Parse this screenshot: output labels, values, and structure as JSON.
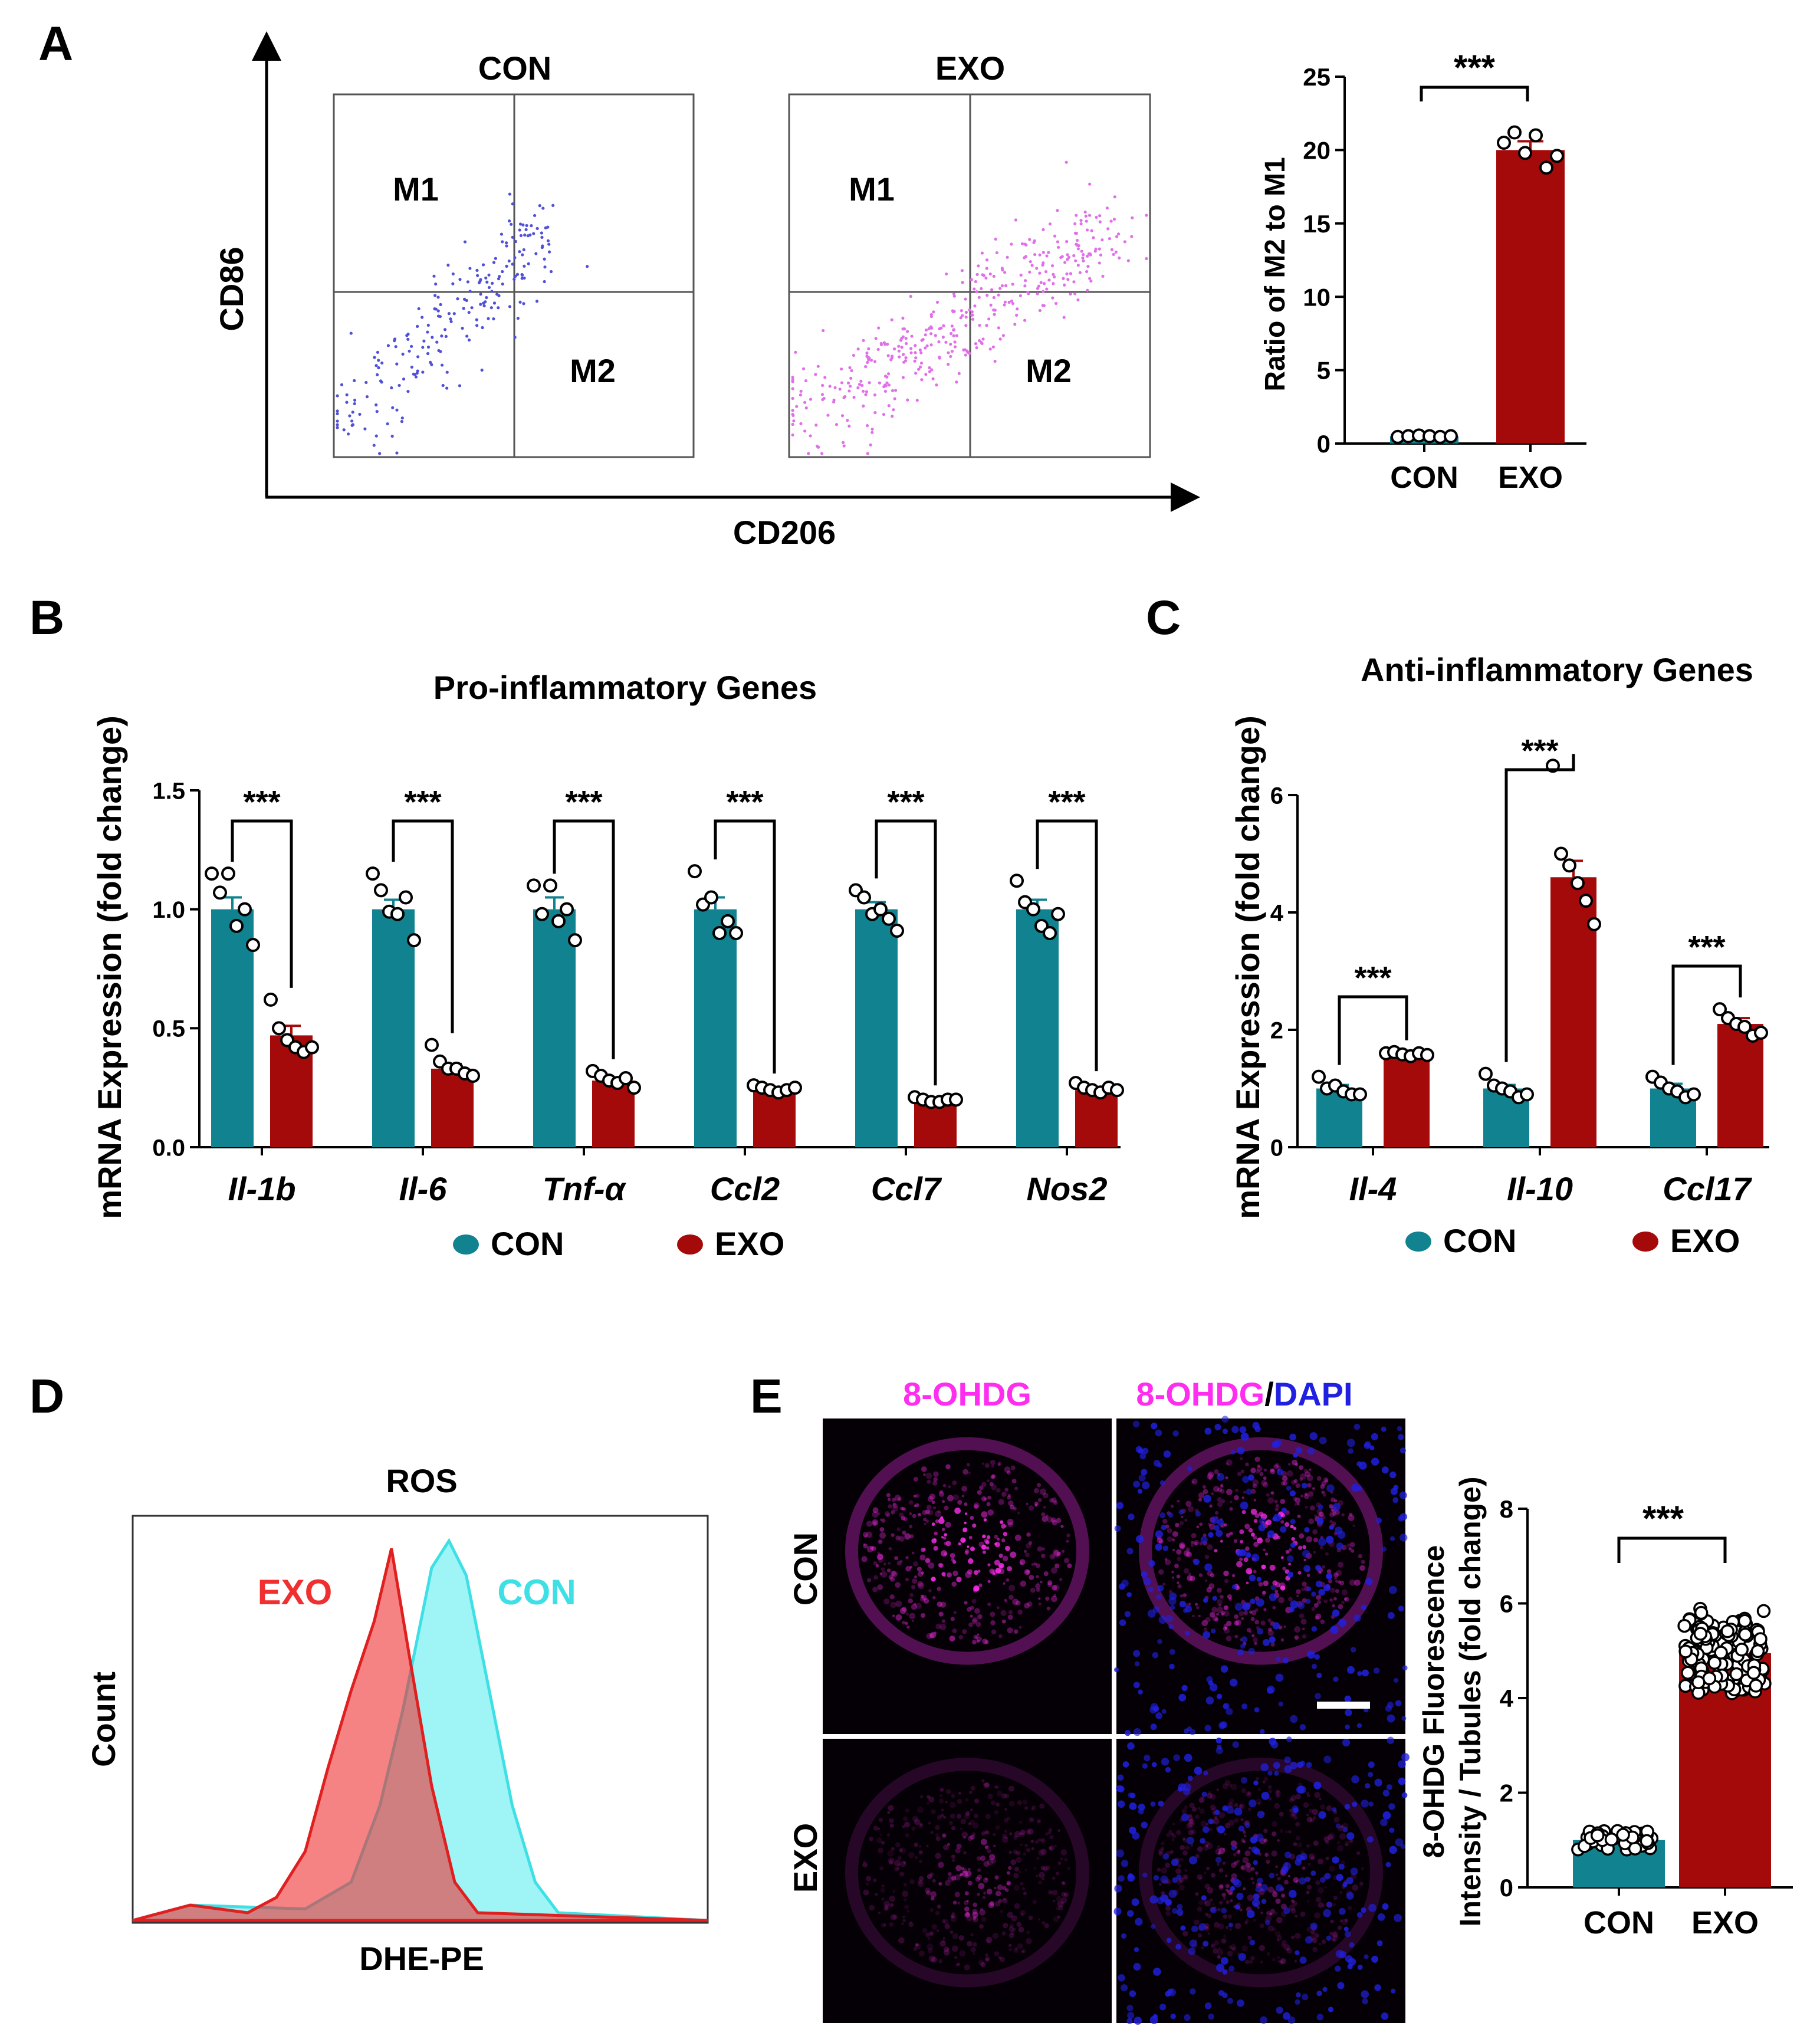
{
  "panel_letters": [
    "A",
    "B",
    "C",
    "D",
    "E"
  ],
  "colors": {
    "con": "#11828f",
    "exo": "#a50a0a",
    "con_flow": "#5050d8",
    "exo_flow": "#e070e8",
    "hist_exo": "#f03030",
    "hist_con": "#3ee0e6",
    "magenta": "#ff2df0",
    "blue": "#2020e0"
  },
  "panelA": {
    "flow": {
      "y_axis": "CD86",
      "x_axis": "CD206",
      "plots": [
        {
          "title": "CON",
          "gate_upper_left": "M1",
          "gate_lower_right": "M2"
        },
        {
          "title": "EXO",
          "gate_upper_left": "M1",
          "gate_lower_right": "M2"
        }
      ]
    },
    "ratio_significance": "***"
  },
  "panelB": {
    "legend": [
      "CON",
      "EXO"
    ],
    "significance": "***"
  },
  "panelC": {
    "legend": [
      "CON",
      "EXO"
    ],
    "significance": "***"
  },
  "panelD": {
    "title": "ROS",
    "ylabel": "Count",
    "xlabel": "DHE-PE",
    "labels": {
      "exo": "EXO",
      "con": "CON"
    }
  },
  "panelE": {
    "col_titles": {
      "left": "8-OHDG",
      "right_a": "8-OHDG",
      "right_sep": "/",
      "right_b": "DAPI"
    },
    "row_labels": [
      "CON",
      "EXO"
    ],
    "significance": "***",
    "scale_bar": "scale-bar"
  },
  "chart_data": [
    {
      "id": "A-ratio",
      "type": "bar",
      "title": "",
      "ylabel": "Ratio of M2 to M1",
      "xlabel": "",
      "categories": [
        "CON",
        "EXO"
      ],
      "values": [
        0.5,
        20.0
      ],
      "error": [
        0.05,
        0.6
      ],
      "points": [
        [
          0.45,
          0.5,
          0.55,
          0.5,
          0.45,
          0.5
        ],
        [
          20.5,
          21.2,
          19.8,
          21.0,
          18.8,
          19.6
        ]
      ],
      "ylim": [
        0,
        25
      ],
      "yticks": [
        0,
        5,
        10,
        15,
        20,
        25
      ]
    },
    {
      "id": "B",
      "type": "bar",
      "title": "Pro-inflammatory Genes",
      "ylabel": "mRNA Expression (fold change)",
      "categories": [
        "Il-1b",
        "Il-6",
        "Tnf-α",
        "Ccl2",
        "Ccl7",
        "Nos2"
      ],
      "series": [
        {
          "name": "CON",
          "values": [
            1.0,
            1.0,
            1.0,
            1.0,
            1.0,
            1.0
          ],
          "error": [
            0.05,
            0.04,
            0.05,
            0.05,
            0.03,
            0.04
          ]
        },
        {
          "name": "EXO",
          "values": [
            0.47,
            0.33,
            0.28,
            0.24,
            0.19,
            0.24
          ],
          "error": [
            0.04,
            0.02,
            0.01,
            0.01,
            0.01,
            0.01
          ]
        }
      ],
      "points": {
        "CON": [
          [
            1.15,
            1.07,
            1.15,
            0.93,
            1.0,
            0.85
          ],
          [
            1.15,
            1.08,
            0.99,
            0.98,
            1.05,
            0.87
          ],
          [
            1.1,
            0.98,
            1.1,
            0.95,
            1.0,
            0.87
          ],
          [
            1.16,
            1.02,
            1.05,
            0.9,
            0.95,
            0.9
          ],
          [
            1.08,
            1.05,
            0.98,
            1.0,
            0.96,
            0.91
          ],
          [
            1.12,
            1.03,
            1.0,
            0.93,
            0.9,
            0.98
          ]
        ],
        "EXO": [
          [
            0.62,
            0.5,
            0.45,
            0.42,
            0.4,
            0.42
          ],
          [
            0.43,
            0.36,
            0.33,
            0.33,
            0.31,
            0.3
          ],
          [
            0.32,
            0.3,
            0.28,
            0.27,
            0.29,
            0.25
          ],
          [
            0.26,
            0.25,
            0.24,
            0.23,
            0.24,
            0.25
          ],
          [
            0.21,
            0.2,
            0.19,
            0.19,
            0.2,
            0.2
          ],
          [
            0.27,
            0.25,
            0.24,
            0.23,
            0.25,
            0.24
          ]
        ]
      },
      "ylim": [
        0,
        1.5
      ],
      "yticks": [
        0.0,
        0.5,
        1.0,
        1.5
      ],
      "ytick_labels": [
        "0.0",
        "0.5",
        "1.0",
        "1.5"
      ],
      "legend": "bottom"
    },
    {
      "id": "C",
      "type": "bar",
      "title": "Anti-inflammatory Genes",
      "ylabel": "mRNA Expression (fold change)",
      "categories": [
        "Il-4",
        "Il-10",
        "Ccl17"
      ],
      "series": [
        {
          "name": "CON",
          "values": [
            1.0,
            1.0,
            1.0
          ],
          "error": [
            0.06,
            0.06,
            0.08
          ]
        },
        {
          "name": "EXO",
          "values": [
            1.6,
            4.6,
            2.1
          ],
          "error": [
            0.03,
            0.28,
            0.1
          ]
        }
      ],
      "points": {
        "CON": [
          [
            1.2,
            1.0,
            1.05,
            0.95,
            0.9,
            0.9
          ],
          [
            1.25,
            1.05,
            1.0,
            0.95,
            0.85,
            0.9
          ],
          [
            1.2,
            1.1,
            1.0,
            0.95,
            0.85,
            0.9
          ]
        ],
        "EXO": [
          [
            1.6,
            1.62,
            1.58,
            1.55,
            1.6,
            1.57
          ],
          [
            6.5,
            5.0,
            4.8,
            4.5,
            4.2,
            3.8
          ],
          [
            2.35,
            2.2,
            2.1,
            2.05,
            1.9,
            1.95
          ]
        ]
      },
      "ylim": [
        0,
        6
      ],
      "yticks": [
        0,
        2,
        4,
        6
      ],
      "legend": "bottom"
    },
    {
      "id": "E-bar",
      "type": "bar",
      "title": "",
      "ylabel": "8-OHDG Fluorescence Intensity / Tubules (fold change)",
      "ylabel_lines": [
        "8-OHDG Fluorescence",
        "Intensity / Tubules (fold change)"
      ],
      "categories": [
        "CON",
        "EXO"
      ],
      "values": [
        1.0,
        4.95
      ],
      "ylim": [
        0,
        8
      ],
      "yticks": [
        0,
        2,
        4,
        6,
        8
      ],
      "point_ranges": [
        [
          0.8,
          1.2
        ],
        [
          4.1,
          5.9
        ]
      ]
    },
    {
      "id": "D-hist",
      "type": "area",
      "title": "ROS",
      "series": [
        {
          "name": "EXO",
          "x": [
            0,
            0.1,
            0.2,
            0.25,
            0.3,
            0.34,
            0.38,
            0.42,
            0.45,
            0.48,
            0.52,
            0.56,
            0.6,
            1.0
          ],
          "y": [
            0,
            0.04,
            0.02,
            0.06,
            0.18,
            0.4,
            0.6,
            0.78,
            0.97,
            0.7,
            0.35,
            0.1,
            0.02,
            0
          ]
        },
        {
          "name": "CON",
          "x": [
            0,
            0.1,
            0.3,
            0.38,
            0.43,
            0.47,
            0.52,
            0.55,
            0.58,
            0.62,
            0.66,
            0.7,
            0.74,
            1.0
          ],
          "y": [
            0,
            0.04,
            0.03,
            0.1,
            0.3,
            0.55,
            0.92,
            0.99,
            0.9,
            0.6,
            0.3,
            0.1,
            0.02,
            0
          ]
        }
      ]
    }
  ]
}
